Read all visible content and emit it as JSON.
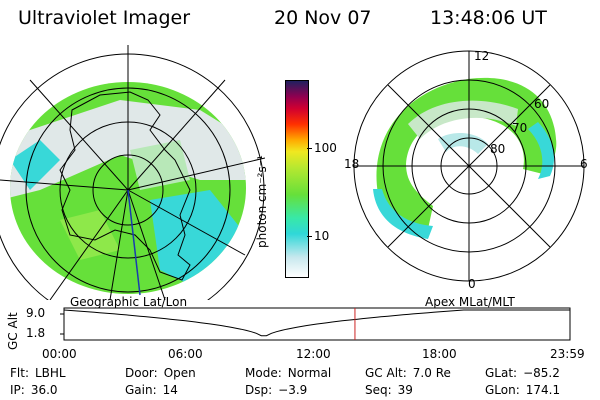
{
  "header": {
    "instrument": "Ultraviolet Imager",
    "date": "20 Nov 07",
    "time": "13:48:06 UT"
  },
  "colorbar": {
    "title": "photon cm⁻²s⁻¹",
    "ticks": [
      "100",
      "10"
    ]
  },
  "polar_plot": {
    "mlt_labels": {
      "top": "12",
      "left": "18",
      "right": "6",
      "bottom": "0"
    },
    "mlat_labels": [
      "60",
      "70",
      "80"
    ]
  },
  "projection_labels": {
    "left": "Geographic Lat/Lon",
    "right": "Apex MLat/MLT"
  },
  "timeline": {
    "ylabel": "GC Alt",
    "yticks": [
      "9.0",
      "1.8"
    ],
    "xticks": [
      "00:00",
      "06:00",
      "12:00",
      "18:00",
      "23:59"
    ],
    "current_time_fraction": 0.575,
    "marker_color": "#cc2222"
  },
  "info": {
    "row1": [
      {
        "label": "Flt:",
        "value": "LBHL"
      },
      {
        "label": "Door:",
        "value": "Open"
      },
      {
        "label": "Mode:",
        "value": "Normal"
      },
      {
        "label": "GC Alt:",
        "value": "7.0 Re"
      },
      {
        "label": "GLat:",
        "value": "−85.2"
      }
    ],
    "row2": [
      {
        "label": "IP:",
        "value": "36.0"
      },
      {
        "label": "Gain:",
        "value": "14"
      },
      {
        "label": "Dsp:",
        "value": "−3.9"
      },
      {
        "label": "Seq:",
        "value": "39"
      },
      {
        "label": "GLon:",
        "value": "174.1"
      }
    ]
  },
  "colors": {
    "aurora_green": "#66e03a",
    "aurora_cyan": "#38d8d8",
    "aurora_light": "#d8e8e8"
  }
}
